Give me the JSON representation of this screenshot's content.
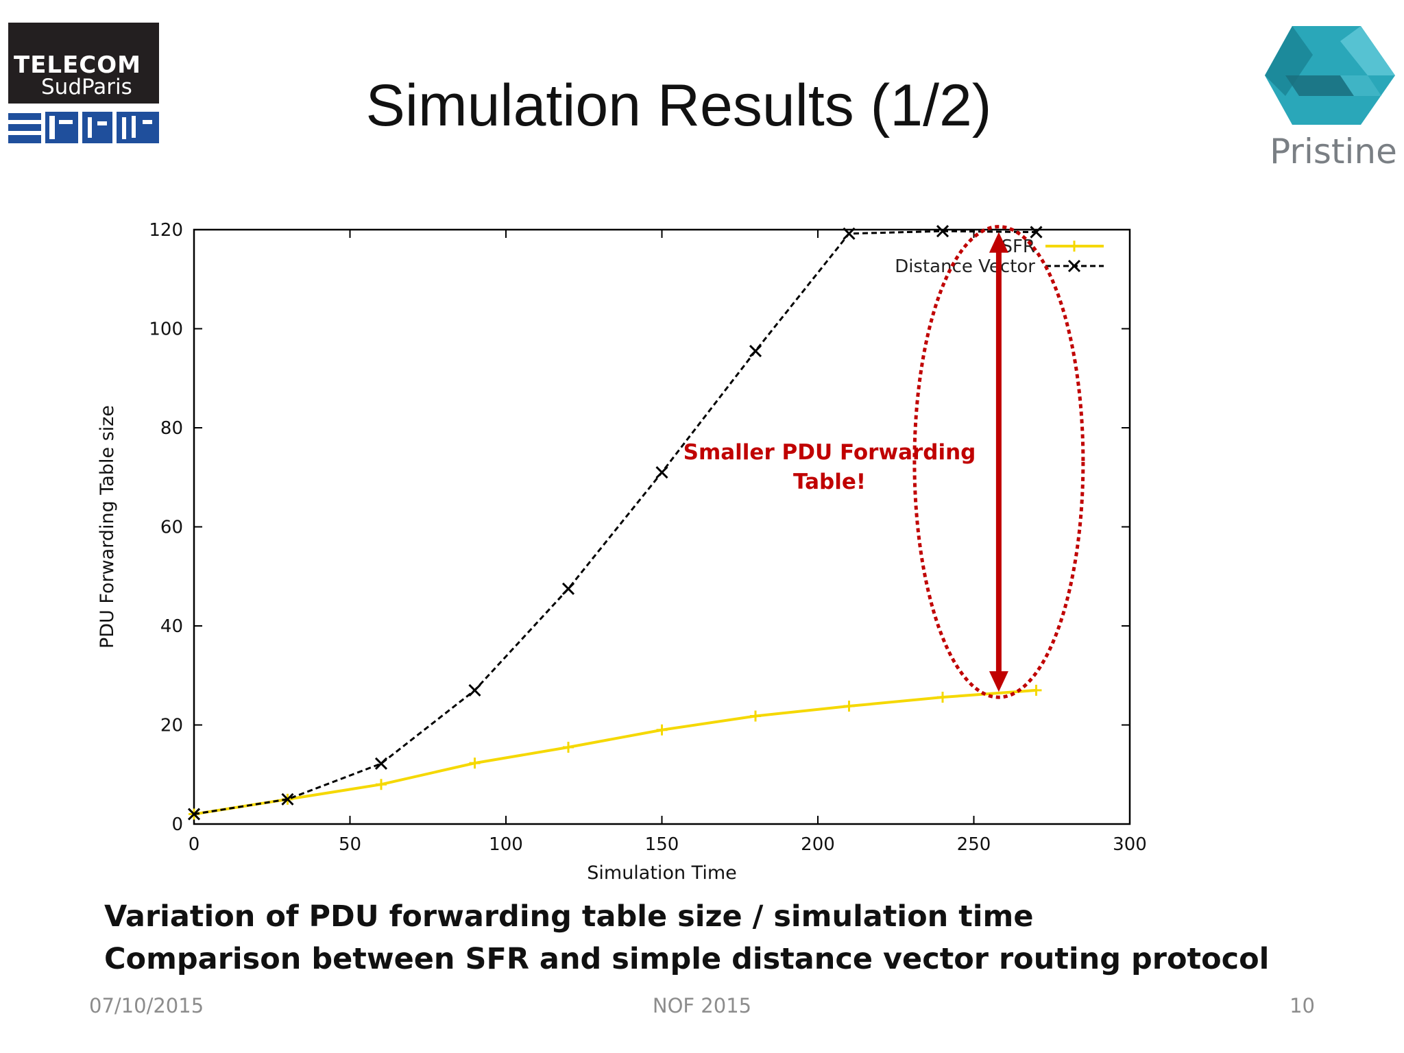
{
  "slide": {
    "title": "Simulation Results (1/2)",
    "caption_line1": "Variation of PDU forwarding table size / simulation time",
    "caption_line2": "Comparison between SFR and simple distance vector routing protocol",
    "footer_date": "07/10/2015",
    "footer_conference": "NOF 2015",
    "footer_page": "10"
  },
  "logos": {
    "left_line1": "TELECOM",
    "left_line2": "SudParis",
    "right_label": "Pristine"
  },
  "annotation": {
    "line1": "Smaller PDU Forwarding",
    "line2": "Table!",
    "color": "#c00000"
  },
  "chart_data": {
    "type": "line",
    "title": "",
    "xlabel": "Simulation Time",
    "ylabel": "PDU Forwarding Table size",
    "xlim": [
      0,
      300
    ],
    "ylim": [
      0,
      120
    ],
    "xticks": [
      0,
      50,
      100,
      150,
      200,
      250,
      300
    ],
    "yticks": [
      0,
      20,
      40,
      60,
      80,
      100,
      120
    ],
    "grid": false,
    "legend_position": "top-right",
    "x": [
      0,
      30,
      60,
      90,
      120,
      150,
      180,
      210,
      240,
      270
    ],
    "series": [
      {
        "name": "SFR",
        "color": "#f5d800",
        "marker": "plus",
        "values": [
          2,
          5,
          8,
          12.3,
          15.5,
          19,
          21.8,
          23.8,
          25.6,
          27
        ]
      },
      {
        "name": "Distance Vector",
        "color": "#000000",
        "marker": "x",
        "dashed": true,
        "values": [
          2,
          5,
          12.2,
          27,
          47.5,
          71,
          95.5,
          119.2,
          119.7,
          119.5
        ]
      }
    ]
  }
}
